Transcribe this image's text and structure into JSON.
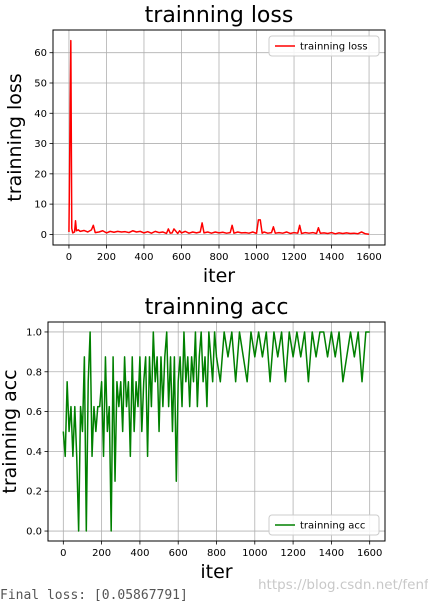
{
  "footer_text": "Final loss: [0.05867791]",
  "watermark": "https://blog.csdn.net/fenfee",
  "chart_data": [
    {
      "type": "line",
      "title": "trainning loss",
      "xlabel": "iter",
      "ylabel": "trainning loss",
      "xlim": [
        -85,
        1685
      ],
      "ylim": [
        -3.5,
        67.5
      ],
      "xticks": [
        0,
        200,
        400,
        600,
        800,
        1000,
        1200,
        1400,
        1600
      ],
      "yticks": [
        0,
        10,
        20,
        30,
        40,
        50,
        60
      ],
      "grid": true,
      "legend_placement": "top-right",
      "series": [
        {
          "name": "trainning loss",
          "color": "#ff0000",
          "x": [
            0,
            10,
            15,
            20,
            30,
            35,
            40,
            50,
            60,
            80,
            100,
            120,
            130,
            140,
            160,
            180,
            200,
            220,
            240,
            260,
            280,
            300,
            320,
            340,
            360,
            380,
            400,
            420,
            440,
            460,
            480,
            500,
            520,
            530,
            540,
            550,
            560,
            580,
            590,
            600,
            620,
            640,
            660,
            680,
            700,
            710,
            720,
            740,
            760,
            780,
            800,
            820,
            840,
            860,
            870,
            880,
            900,
            920,
            940,
            960,
            980,
            1000,
            1010,
            1020,
            1030,
            1040,
            1060,
            1080,
            1090,
            1100,
            1120,
            1140,
            1160,
            1180,
            1200,
            1220,
            1230,
            1240,
            1260,
            1280,
            1300,
            1320,
            1330,
            1340,
            1360,
            1380,
            1400,
            1420,
            1440,
            1460,
            1480,
            1500,
            1520,
            1540,
            1560,
            1580,
            1600
          ],
          "y": [
            0.8,
            64,
            2,
            0.5,
            0.8,
            4.5,
            1.2,
            1.5,
            1.0,
            1.3,
            0.8,
            1.5,
            3.0,
            0.6,
            0.8,
            1.2,
            0.5,
            1.0,
            0.7,
            1.0,
            0.8,
            0.9,
            0.6,
            1.2,
            0.8,
            1.0,
            0.5,
            0.9,
            0.4,
            1.0,
            0.6,
            0.8,
            0.3,
            1.8,
            0.4,
            0.5,
            1.8,
            0.3,
            1.2,
            0.5,
            1.0,
            0.4,
            0.8,
            0.5,
            0.8,
            3.8,
            0.5,
            0.8,
            0.4,
            0.8,
            0.5,
            0.7,
            0.4,
            0.6,
            3.0,
            0.4,
            0.8,
            0.5,
            0.6,
            0.4,
            0.8,
            0.3,
            4.8,
            4.8,
            0.4,
            0.8,
            0.4,
            0.6,
            2.5,
            0.4,
            0.6,
            0.4,
            0.8,
            0.3,
            0.6,
            0.4,
            3.0,
            0.3,
            0.6,
            0.4,
            0.6,
            0.3,
            2.2,
            0.4,
            0.5,
            0.3,
            0.6,
            0.2,
            0.5,
            0.3,
            0.5,
            0.3,
            0.4,
            0.2,
            0.8,
            0.2,
            0.06
          ]
        }
      ]
    },
    {
      "type": "line",
      "title": "trainning acc",
      "xlabel": "iter",
      "ylabel": "trainning acc",
      "xlim": [
        -80,
        1680
      ],
      "ylim": [
        -0.05,
        1.05
      ],
      "xticks": [
        0,
        200,
        400,
        600,
        800,
        1000,
        1200,
        1400,
        1600
      ],
      "yticks": [
        0.0,
        0.2,
        0.4,
        0.6,
        0.8,
        1.0
      ],
      "grid": true,
      "legend_placement": "bottom-right",
      "series": [
        {
          "name": "trainning acc",
          "color": "#008000",
          "x": [
            0,
            10,
            20,
            30,
            40,
            50,
            60,
            70,
            80,
            90,
            100,
            110,
            120,
            130,
            140,
            150,
            160,
            170,
            180,
            190,
            200,
            210,
            220,
            230,
            240,
            250,
            260,
            270,
            280,
            290,
            300,
            310,
            320,
            330,
            340,
            350,
            360,
            370,
            380,
            390,
            400,
            410,
            420,
            430,
            440,
            450,
            460,
            470,
            480,
            490,
            500,
            510,
            520,
            530,
            540,
            550,
            560,
            570,
            580,
            590,
            600,
            610,
            620,
            630,
            640,
            650,
            660,
            670,
            680,
            690,
            700,
            710,
            720,
            730,
            740,
            750,
            760,
            770,
            780,
            790,
            800,
            820,
            840,
            860,
            880,
            900,
            920,
            940,
            960,
            980,
            1000,
            1020,
            1040,
            1060,
            1080,
            1100,
            1120,
            1140,
            1160,
            1180,
            1200,
            1220,
            1240,
            1260,
            1280,
            1300,
            1320,
            1340,
            1360,
            1380,
            1400,
            1420,
            1440,
            1460,
            1480,
            1500,
            1520,
            1540,
            1560,
            1580,
            1600
          ],
          "y": [
            0.5,
            0.375,
            0.75,
            0.5,
            0.625,
            0.375,
            0.625,
            0.375,
            0.0,
            0.625,
            0.5,
            0.875,
            0.0,
            0.75,
            1.0,
            0.375,
            0.625,
            0.5,
            0.625,
            0.625,
            0.75,
            0.375,
            0.875,
            0.5,
            0.625,
            0.0,
            0.875,
            0.25,
            0.75,
            0.625,
            0.75,
            0.5,
            0.875,
            0.625,
            0.75,
            0.375,
            0.875,
            0.5,
            0.75,
            0.625,
            0.875,
            0.5,
            0.75,
            0.875,
            0.375,
            0.875,
            0.625,
            1.0,
            0.75,
            0.875,
            0.5,
            0.875,
            0.625,
            0.875,
            1.0,
            0.625,
            0.875,
            0.5,
            0.875,
            0.25,
            0.75,
            0.875,
            0.625,
            1.0,
            0.75,
            0.875,
            0.625,
            0.875,
            0.75,
            1.0,
            0.625,
            0.875,
            1.0,
            0.75,
            0.875,
            0.625,
            1.0,
            0.875,
            0.75,
            1.0,
            0.875,
            0.75,
            1.0,
            0.875,
            1.0,
            0.75,
            1.0,
            0.875,
            0.75,
            1.0,
            0.875,
            1.0,
            0.875,
            1.0,
            0.75,
            1.0,
            0.875,
            1.0,
            0.75,
            1.0,
            0.875,
            1.0,
            0.875,
            1.0,
            0.75,
            1.0,
            0.875,
            1.0,
            1.0,
            0.875,
            1.0,
            0.875,
            1.0,
            0.75,
            0.875,
            1.0,
            0.875,
            1.0,
            0.75,
            1.0,
            1.0
          ]
        }
      ]
    }
  ]
}
